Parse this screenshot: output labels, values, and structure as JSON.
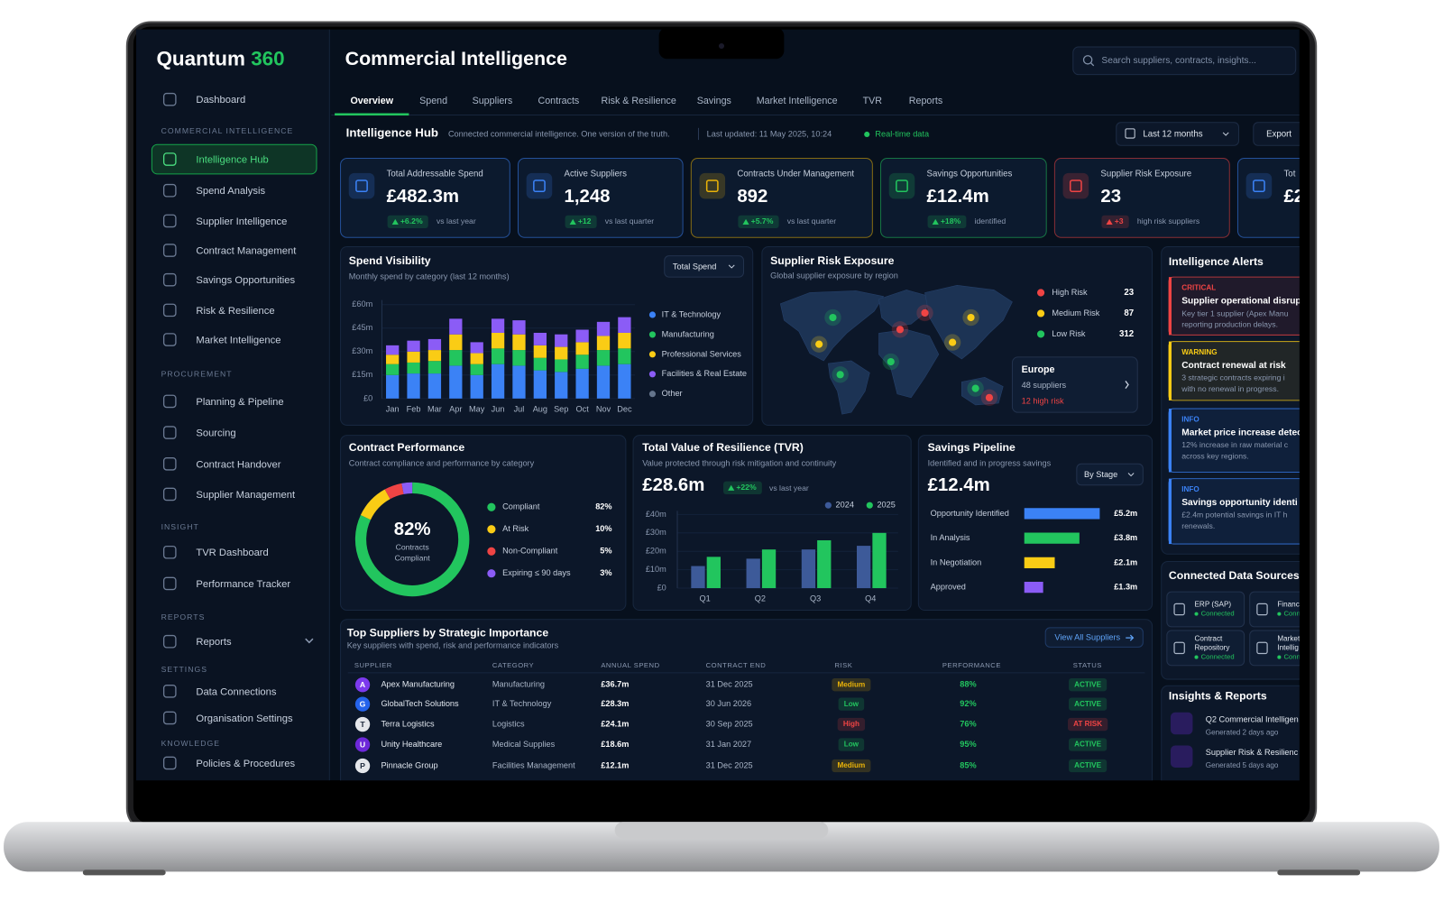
{
  "brand": {
    "name": "Quantum",
    "accent": "360"
  },
  "sidebar": {
    "top": "Dashboard",
    "active": "Intelligence Hub",
    "groups": [
      {
        "heading": "COMMERCIAL INTELLIGENCE",
        "items": [
          "Intelligence Hub",
          "Spend Analysis",
          "Supplier Intelligence",
          "Contract Management",
          "Savings Opportunities",
          "Risk & Resilience",
          "Market Intelligence"
        ]
      },
      {
        "heading": "PROCUREMENT",
        "items": [
          "Planning & Pipeline",
          "Sourcing",
          "Contract Handover",
          "Supplier Management"
        ]
      },
      {
        "heading": "INSIGHT",
        "items": [
          "TVR Dashboard",
          "Performance Tracker"
        ]
      },
      {
        "heading": "REPORTS",
        "items": [
          "Reports"
        ]
      },
      {
        "heading": "SETTINGS",
        "items": [
          "Data Connections",
          "Organisation Settings"
        ]
      },
      {
        "heading": "KNOWLEDGE",
        "items": [
          "Policies & Procedures"
        ]
      }
    ]
  },
  "header": {
    "title": "Commercial Intelligence",
    "search_placeholder": "Search suppliers, contracts, insights..."
  },
  "tabs": {
    "items": [
      "Overview",
      "Spend",
      "Suppliers",
      "Contracts",
      "Risk & Resilience",
      "Savings",
      "Market Intelligence",
      "TVR",
      "Reports"
    ],
    "active": "Overview"
  },
  "hub": {
    "title": "Intelligence Hub",
    "tagline": "Connected commercial intelligence. One version of the truth.",
    "last_updated": "Last updated: 11 May 2025, 10:24",
    "status": "Real-time data",
    "period": "Last 12 months",
    "export": "Export"
  },
  "kpis": [
    {
      "label": "Total Addressable Spend",
      "value": "£482.3m",
      "change": "+6.2%",
      "note": "vs last year",
      "color": "#3b82f6",
      "tone": "#22c55e"
    },
    {
      "label": "Active Suppliers",
      "value": "1,248",
      "change": "+12",
      "note": "vs last quarter",
      "color": "#3b82f6",
      "tone": "#22c55e"
    },
    {
      "label": "Contracts Under Management",
      "value": "892",
      "change": "+5.7%",
      "note": "vs last quarter",
      "color": "#eab308",
      "tone": "#22c55e"
    },
    {
      "label": "Savings Opportunities",
      "value": "£12.4m",
      "change": "+18%",
      "note": "identified",
      "color": "#22c55e",
      "tone": "#22c55e"
    },
    {
      "label": "Supplier Risk Exposure",
      "value": "23",
      "change": "+3",
      "note": "high risk suppliers",
      "color": "#ef4444",
      "tone": "#ef4444"
    },
    {
      "label": "Tot",
      "value": "£2",
      "color": "#3b82f6",
      "tone": "#22c55e"
    }
  ],
  "spend_visibility": {
    "type": "bar",
    "stacked": true,
    "grid": true,
    "title": "Spend Visibility",
    "subtitle": "Monthly spend by category (last 12 months)",
    "control": "Total Spend",
    "categories": [
      "Jan",
      "Feb",
      "Mar",
      "Apr",
      "May",
      "Jun",
      "Jul",
      "Aug",
      "Sep",
      "Oct",
      "Nov",
      "Dec"
    ],
    "series": [
      {
        "name": "IT & Technology",
        "color": "#3b82f6",
        "values": [
          15,
          16,
          16,
          21,
          15,
          22,
          21,
          18,
          17,
          19,
          21,
          22
        ]
      },
      {
        "name": "Manufacturing",
        "color": "#22c55e",
        "values": [
          7,
          7,
          8,
          10,
          7,
          10,
          10,
          8,
          8,
          9,
          10,
          10
        ]
      },
      {
        "name": "Professional Services",
        "color": "#facc15",
        "values": [
          6,
          7,
          7,
          10,
          7,
          10,
          10,
          8,
          8,
          8,
          9,
          10
        ]
      },
      {
        "name": "Facilities & Real Estate",
        "color": "#8b5cf6",
        "values": [
          6,
          7,
          7,
          10,
          7,
          9,
          9,
          8,
          8,
          8,
          9,
          10
        ]
      },
      {
        "name": "Other",
        "color": "#64748b",
        "values": [
          0,
          0,
          0,
          0,
          0,
          0,
          0,
          0,
          0,
          0,
          0,
          0
        ]
      }
    ],
    "ylim": [
      0,
      60
    ],
    "yticks": [
      {
        "value": 0,
        "label": "£0"
      },
      {
        "value": 15,
        "label": "£15m"
      },
      {
        "value": 30,
        "label": "£30m"
      },
      {
        "value": 45,
        "label": "£45m"
      },
      {
        "value": 60,
        "label": "£60m"
      }
    ]
  },
  "risk_map": {
    "title": "Supplier Risk Exposure",
    "subtitle": "Global supplier exposure by region",
    "legend": [
      {
        "name": "High Risk",
        "value": 23,
        "color": "#ef4444"
      },
      {
        "name": "Medium Risk",
        "value": 87,
        "color": "#facc15"
      },
      {
        "name": "Low Risk",
        "value": 312,
        "color": "#22c55e"
      }
    ],
    "region": {
      "name": "Europe",
      "suppliers": "48 suppliers",
      "high_risk": "12 high risk"
    }
  },
  "contract_performance": {
    "type": "donut",
    "title": "Contract Performance",
    "subtitle": "Contract compliance and performance by category",
    "center_lines": [
      "Contracts",
      "Compliant"
    ],
    "categories": [
      "Compliant",
      "At Risk",
      "Non-Compliant",
      "Expiring ≤ 90 days"
    ],
    "values": [
      82,
      10,
      5,
      3
    ],
    "value_labels": [
      "82%",
      "10%",
      "5%",
      "3%"
    ],
    "colors": [
      "#22c55e",
      "#facc15",
      "#ef4444",
      "#8b5cf6"
    ]
  },
  "tvr": {
    "type": "bar",
    "grid": true,
    "title": "Total Value of Resilience (TVR)",
    "subtitle": "Value protected through risk mitigation and continuity",
    "headline": "£28.6m",
    "change": "+22%",
    "note": "vs last year",
    "categories": [
      "Q1",
      "Q2",
      "Q3",
      "Q4"
    ],
    "series": [
      {
        "name": "2024",
        "color": "#3d5a99",
        "values": [
          12,
          16,
          21,
          23
        ]
      },
      {
        "name": "2025",
        "color": "#22c55e",
        "values": [
          17,
          21,
          26,
          30
        ]
      }
    ],
    "ylim": [
      0,
      40
    ],
    "yticks": [
      {
        "value": 0,
        "label": "£0"
      },
      {
        "value": 10,
        "label": "£10m"
      },
      {
        "value": 20,
        "label": "£20m"
      },
      {
        "value": 30,
        "label": "£30m"
      },
      {
        "value": 40,
        "label": "£40m"
      }
    ]
  },
  "savings_pipeline": {
    "type": "bar",
    "orientation": "horizontal",
    "title": "Savings Pipeline",
    "subtitle": "Identified and in progress savings",
    "headline": "£12.4m",
    "control": "By Stage",
    "categories": [
      "Opportunity Identified",
      "In Analysis",
      "In Negotiation",
      "Approved"
    ],
    "values": [
      5.2,
      3.8,
      2.1,
      1.3
    ],
    "value_labels": [
      "£5.2m",
      "£3.8m",
      "£2.1m",
      "£1.3m"
    ],
    "colors": [
      "#3b82f6",
      "#22c55e",
      "#facc15",
      "#8b5cf6"
    ]
  },
  "alerts": {
    "title": "Intelligence Alerts",
    "items": [
      {
        "level": "CRITICAL",
        "color": "#ef4444",
        "title": "Supplier operational disrupt",
        "lines": [
          "Key tier 1 supplier (Apex Manu",
          "reporting production delays."
        ]
      },
      {
        "level": "WARNING",
        "color": "#facc15",
        "title": "Contract renewal at risk",
        "lines": [
          "3 strategic contracts expiring i",
          "with no renewal in progress."
        ]
      },
      {
        "level": "INFO",
        "color": "#3b82f6",
        "title": "Market price increase detec",
        "lines": [
          "12% increase in raw material c",
          "across key regions."
        ]
      },
      {
        "level": "INFO",
        "color": "#3b82f6",
        "title": "Savings opportunity identi",
        "lines": [
          "£2.4m potential savings in IT h",
          "renewals."
        ]
      }
    ]
  },
  "data_sources": {
    "title": "Connected Data Sources",
    "items": [
      {
        "name": [
          "ERP (SAP)"
        ],
        "status": "Connected"
      },
      {
        "name": [
          "Finance"
        ],
        "status": "Conn"
      },
      {
        "name": [
          "Contract",
          "Repository"
        ],
        "status": "Connected"
      },
      {
        "name": [
          "Market",
          "Intellig"
        ],
        "status": "Conn"
      }
    ]
  },
  "reports": {
    "title": "Insights & Reports",
    "items": [
      {
        "title": "Q2 Commercial Intelligen",
        "meta": "Generated 2 days ago"
      },
      {
        "title": "Supplier Risk & Resilienc",
        "meta": "Generated 5 days ago"
      }
    ]
  },
  "table": {
    "title": "Top Suppliers by Strategic Importance",
    "subtitle": "Key suppliers with spend, risk and performance indicators",
    "action": "View All Suppliers",
    "columns": [
      "SUPPLIER",
      "CATEGORY",
      "ANNUAL SPEND",
      "CONTRACT END",
      "RISK",
      "PERFORMANCE",
      "STATUS"
    ],
    "rows": [
      [
        "A",
        "Apex Manufacturing",
        "Manufacturing",
        "£36.7m",
        "31 Dec 2025",
        "Medium",
        "88%",
        "ACTIVE"
      ],
      [
        "G",
        "GlobalTech Solutions",
        "IT & Technology",
        "£28.3m",
        "30 Jun 2026",
        "Low",
        "92%",
        "ACTIVE"
      ],
      [
        "T",
        "Terra Logistics",
        "Logistics",
        "£24.1m",
        "30 Sep 2025",
        "High",
        "76%",
        "AT RISK"
      ],
      [
        "U",
        "Unity Healthcare",
        "Medical Supplies",
        "£18.6m",
        "31 Jan 2027",
        "Low",
        "95%",
        "ACTIVE"
      ],
      [
        "P",
        "Pinnacle Group",
        "Facilities Management",
        "£12.1m",
        "31 Dec 2025",
        "Medium",
        "85%",
        "ACTIVE"
      ]
    ],
    "avatar_colors": [
      "#7c3aed",
      "#2563eb",
      "#e5e7eb",
      "#6d28d9",
      "#e5e7eb"
    ],
    "risk_tones": {
      "Medium": "#eab308",
      "Low": "#22c55e",
      "High": "#ef4444"
    },
    "status_tones": {
      "ACTIVE": "#22c55e",
      "AT RISK": "#ef4444"
    }
  }
}
